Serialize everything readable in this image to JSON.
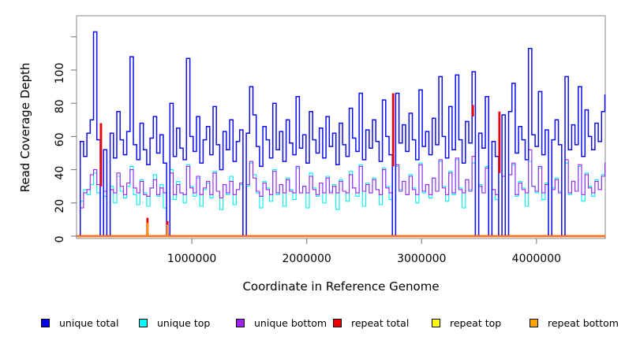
{
  "chart_data": {
    "type": "line",
    "title": "",
    "xlabel": "Coordinate in Reference Genome",
    "ylabel": "Read Coverage Depth",
    "xlim": [
      0,
      4600000
    ],
    "ylim": [
      0,
      132
    ],
    "grid": false,
    "legend_position": "bottom",
    "xticks": {
      "values": [
        1000000,
        2000000,
        3000000,
        4000000
      ],
      "labels": [
        "1000000",
        "2000000",
        "3000000",
        "4000000"
      ]
    },
    "yticks": {
      "values": [
        0,
        20,
        40,
        60,
        80,
        100,
        120
      ],
      "labels": [
        "0",
        "20",
        "40",
        "60",
        "80",
        "100",
        ""
      ]
    },
    "n_points": 160,
    "x_start": 0,
    "x_step": 28900,
    "series": [
      {
        "name": "unique top",
        "color": "#00EFEF",
        "stroke_width": 1.1,
        "values": [
          0,
          21,
          28,
          25,
          31,
          38,
          26,
          0,
          24,
          0,
          30,
          20,
          36,
          27,
          23,
          30,
          42,
          25,
          19,
          34,
          26,
          18,
          29,
          37,
          24,
          31,
          17,
          0,
          40,
          22,
          33,
          26,
          20,
          43,
          30,
          24,
          35,
          18,
          28,
          32,
          23,
          39,
          27,
          16,
          31,
          25,
          36,
          19,
          28,
          31,
          0,
          30,
          44,
          37,
          26,
          17,
          33,
          29,
          21,
          40,
          25,
          31,
          18,
          35,
          28,
          22,
          41,
          26,
          30,
          17,
          38,
          29,
          24,
          32,
          20,
          36,
          27,
          31,
          16,
          34,
          27,
          21,
          39,
          29,
          24,
          43,
          18,
          32,
          26,
          35,
          28,
          19,
          41,
          30,
          22,
          0,
          42,
          28,
          33,
          25,
          37,
          29,
          20,
          44,
          26,
          31,
          23,
          35,
          27,
          45,
          30,
          21,
          39,
          25,
          46,
          29,
          17,
          34,
          28,
          44,
          0,
          31,
          26,
          42,
          0,
          28,
          22,
          0,
          36,
          0,
          37,
          43,
          24,
          33,
          29,
          18,
          45,
          30,
          26,
          41,
          22,
          32,
          0,
          29,
          35,
          27,
          0,
          44,
          25,
          33,
          27,
          42,
          21,
          38,
          30,
          24,
          34,
          28,
          37,
          42
        ]
      },
      {
        "name": "unique bottom",
        "color": "#A020F0",
        "stroke_width": 1.1,
        "values": [
          0,
          17,
          26,
          28,
          37,
          40,
          31,
          0,
          27,
          0,
          28,
          26,
          38,
          30,
          25,
          32,
          40,
          29,
          26,
          33,
          25,
          24,
          29,
          34,
          25,
          29,
          26,
          0,
          38,
          25,
          31,
          26,
          25,
          42,
          29,
          26,
          36,
          25,
          29,
          33,
          25,
          38,
          27,
          23,
          31,
          26,
          33,
          25,
          28,
          32,
          0,
          31,
          45,
          35,
          27,
          24,
          32,
          28,
          25,
          39,
          26,
          31,
          26,
          34,
          27,
          26,
          42,
          26,
          30,
          26,
          36,
          28,
          25,
          32,
          26,
          35,
          26,
          30,
          26,
          33,
          27,
          26,
          37,
          29,
          26,
          42,
          27,
          31,
          26,
          34,
          28,
          25,
          40,
          29,
          26,
          0,
          43,
          27,
          33,
          25,
          36,
          28,
          25,
          43,
          27,
          31,
          25,
          35,
          27,
          46,
          29,
          25,
          38,
          26,
          47,
          28,
          26,
          34,
          27,
          48,
          0,
          30,
          26,
          41,
          0,
          28,
          25,
          0,
          36,
          0,
          37,
          44,
          25,
          32,
          28,
          26,
          52,
          30,
          27,
          42,
          26,
          31,
          0,
          28,
          34,
          26,
          0,
          46,
          26,
          33,
          27,
          43,
          25,
          37,
          29,
          26,
          33,
          28,
          36,
          44
        ]
      },
      {
        "name": "unique total",
        "color": "#0D0DEE",
        "stroke_width": 1.5,
        "values": [
          0,
          57,
          48,
          62,
          70,
          123,
          58,
          0,
          52,
          0,
          62,
          47,
          75,
          58,
          49,
          63,
          108,
          55,
          46,
          68,
          52,
          43,
          59,
          72,
          50,
          61,
          44,
          0,
          80,
          48,
          65,
          53,
          46,
          107,
          60,
          51,
          72,
          44,
          58,
          66,
          49,
          78,
          55,
          40,
          63,
          52,
          70,
          45,
          57,
          64,
          0,
          62,
          90,
          73,
          54,
          42,
          66,
          58,
          47,
          80,
          52,
          63,
          45,
          70,
          56,
          49,
          84,
          53,
          61,
          44,
          75,
          58,
          50,
          65,
          47,
          72,
          54,
          62,
          43,
          68,
          55,
          48,
          77,
          59,
          51,
          86,
          46,
          64,
          53,
          70,
          57,
          45,
          82,
          60,
          49,
          0,
          86,
          56,
          67,
          51,
          74,
          58,
          46,
          88,
          54,
          63,
          49,
          71,
          55,
          96,
          60,
          47,
          78,
          52,
          97,
          58,
          44,
          69,
          56,
          99,
          0,
          62,
          53,
          84,
          0,
          57,
          48,
          0,
          73,
          0,
          75,
          92,
          50,
          66,
          58,
          46,
          113,
          61,
          54,
          87,
          49,
          64,
          0,
          58,
          70,
          55,
          0,
          96,
          52,
          67,
          55,
          90,
          48,
          76,
          60,
          52,
          68,
          57,
          75,
          85
        ]
      },
      {
        "name": "repeat top",
        "color": "#FFFF00",
        "stroke_width": 1.2,
        "baseline": 0,
        "spikes": []
      },
      {
        "name": "repeat total",
        "color": "#EE0000",
        "stroke_width": 2.4,
        "baseline": 0,
        "spikes": [
          [
            7,
            30,
            68
          ],
          [
            21,
            0,
            11
          ],
          [
            27,
            0,
            9
          ],
          [
            95,
            42,
            86
          ],
          [
            119,
            72,
            79
          ],
          [
            127,
            38,
            75
          ]
        ]
      },
      {
        "name": "repeat bottom",
        "color": "#FFA500",
        "stroke_width": 1.5,
        "baseline": 0,
        "spikes": [
          [
            21,
            0,
            8
          ],
          [
            27,
            0,
            7
          ]
        ]
      }
    ]
  },
  "legend": [
    {
      "label": "unique total",
      "color": "#0000EE"
    },
    {
      "label": "unique top",
      "color": "#00FFFF"
    },
    {
      "label": "unique bottom",
      "color": "#A020F0"
    },
    {
      "label": "repeat total",
      "color": "#EE0000"
    },
    {
      "label": "repeat top",
      "color": "#FFFF00"
    },
    {
      "label": "repeat bottom",
      "color": "#FFA500"
    }
  ]
}
